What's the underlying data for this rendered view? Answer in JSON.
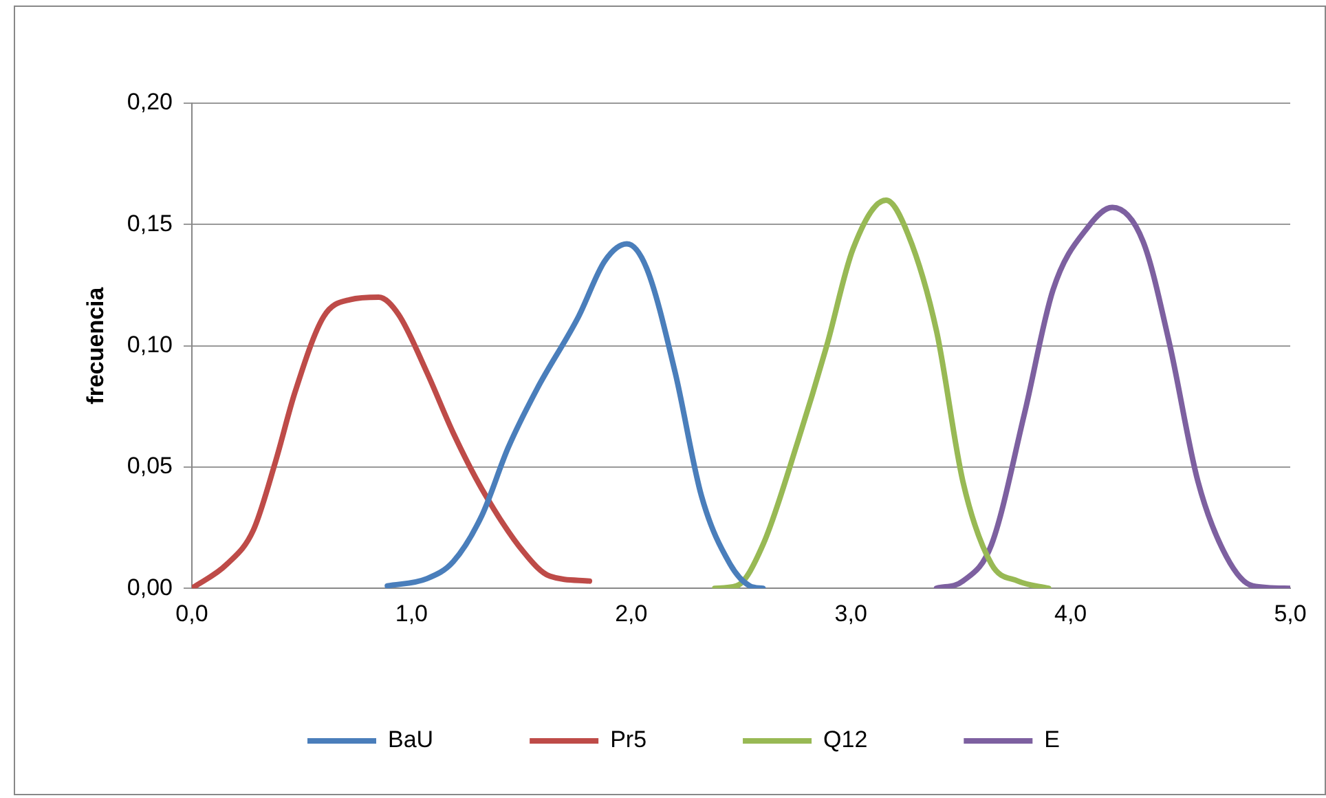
{
  "chart_data": {
    "type": "line",
    "ylabel": "frecuencia",
    "xlim": [
      0,
      5
    ],
    "ylim": [
      0,
      0.2
    ],
    "xticks": [
      {
        "value": 0,
        "label": "0,0"
      },
      {
        "value": 1,
        "label": "1,0"
      },
      {
        "value": 2,
        "label": "2,0"
      },
      {
        "value": 3,
        "label": "3,0"
      },
      {
        "value": 4,
        "label": "4,0"
      },
      {
        "value": 5,
        "label": "5,0"
      }
    ],
    "yticks": [
      {
        "value": 0,
        "label": "0,00"
      },
      {
        "value": 0.05,
        "label": "0,05"
      },
      {
        "value": 0.1,
        "label": "0,10"
      },
      {
        "value": 0.15,
        "label": "0,15"
      },
      {
        "value": 0.2,
        "label": "0,20"
      }
    ],
    "grid": "y",
    "legend": "bottom",
    "marker": "none",
    "line_style": "solid",
    "series": [
      {
        "name": "BaU",
        "color": "#4a7ebb",
        "x": [
          0.89,
          1.07,
          1.19,
          1.32,
          1.44,
          1.57,
          1.76,
          1.88,
          1.98,
          2.07,
          2.2,
          2.32,
          2.45,
          2.54,
          2.6
        ],
        "values": [
          0.001,
          0.004,
          0.011,
          0.03,
          0.058,
          0.082,
          0.112,
          0.135,
          0.142,
          0.132,
          0.089,
          0.038,
          0.01,
          0.001,
          0
        ]
      },
      {
        "name": "Pr5",
        "color": "#be4b48",
        "x": [
          0,
          0.16,
          0.28,
          0.38,
          0.47,
          0.6,
          0.72,
          0.85,
          0.94,
          1.07,
          1.19,
          1.32,
          1.51,
          1.63,
          1.81
        ],
        "values": [
          0,
          0.01,
          0.024,
          0.052,
          0.081,
          0.112,
          0.119,
          0.12,
          0.113,
          0.089,
          0.064,
          0.041,
          0.015,
          0.005,
          0.003
        ]
      },
      {
        "name": "Q12",
        "color": "#98b954",
        "x": [
          2.38,
          2.48,
          2.6,
          2.76,
          2.89,
          3.01,
          3.16,
          3.26,
          3.39,
          3.51,
          3.64,
          3.76,
          3.9
        ],
        "values": [
          0,
          0.001,
          0.018,
          0.061,
          0.1,
          0.14,
          0.16,
          0.146,
          0.106,
          0.044,
          0.01,
          0.003,
          0
        ]
      },
      {
        "name": "E",
        "color": "#7d60a0",
        "x": [
          3.39,
          3.51,
          3.64,
          3.79,
          3.92,
          4.08,
          4.19,
          4.33,
          4.45,
          4.58,
          4.71,
          4.83,
          5.0
        ],
        "values": [
          0,
          0.003,
          0.018,
          0.072,
          0.123,
          0.149,
          0.157,
          0.143,
          0.101,
          0.044,
          0.013,
          0.001,
          0
        ]
      }
    ]
  }
}
